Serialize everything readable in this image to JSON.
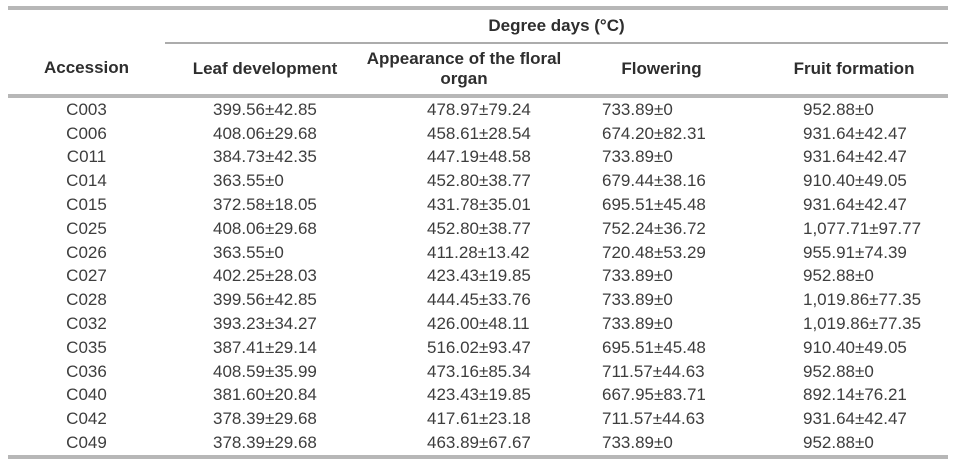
{
  "table": {
    "span_header": "Degree days (°C)",
    "columns": [
      "Accession",
      "Leaf development",
      "Appearance of the floral organ",
      "Flowering",
      "Fruit formation"
    ],
    "rows": [
      [
        "C003",
        "399.56±42.85",
        "478.97±79.24",
        "733.89±0",
        "952.88±0"
      ],
      [
        "C006",
        "408.06±29.68",
        "458.61±28.54",
        "674.20±82.31",
        "931.64±42.47"
      ],
      [
        "C011",
        "384.73±42.35",
        "447.19±48.58",
        "733.89±0",
        "931.64±42.47"
      ],
      [
        "C014",
        "363.55±0",
        "452.80±38.77",
        "679.44±38.16",
        "910.40±49.05"
      ],
      [
        "C015",
        "372.58±18.05",
        "431.78±35.01",
        "695.51±45.48",
        "931.64±42.47"
      ],
      [
        "C025",
        "408.06±29.68",
        "452.80±38.77",
        "752.24±36.72",
        "1,077.71±97.77"
      ],
      [
        "C026",
        "363.55±0",
        "411.28±13.42",
        "720.48±53.29",
        "955.91±74.39"
      ],
      [
        "C027",
        "402.25±28.03",
        "423.43±19.85",
        "733.89±0",
        "952.88±0"
      ],
      [
        "C028",
        "399.56±42.85",
        "444.45±33.76",
        "733.89±0",
        "1,019.86±77.35"
      ],
      [
        "C032",
        "393.23±34.27",
        "426.00±48.11",
        "733.89±0",
        "1,019.86±77.35"
      ],
      [
        "C035",
        "387.41±29.14",
        "516.02±93.47",
        "695.51±45.48",
        "910.40±49.05"
      ],
      [
        "C036",
        "408.59±35.99",
        "473.16±85.34",
        "711.57±44.63",
        "952.88±0"
      ],
      [
        "C040",
        "381.60±20.84",
        "423.43±19.85",
        "667.95±83.71",
        "892.14±76.21"
      ],
      [
        "C042",
        "378.39±29.68",
        "417.61±23.18",
        "711.57±44.63",
        "931.64±42.47"
      ],
      [
        "C049",
        "378.39±29.68",
        "463.89±67.67",
        "733.89±0",
        "952.88±0"
      ]
    ]
  },
  "colors": {
    "rule_gray": "#b7b7b7",
    "thin_rule_gray": "#acacac",
    "header_text": "#2e2e2e",
    "body_text": "#3d3d3d",
    "background": "#ffffff"
  }
}
